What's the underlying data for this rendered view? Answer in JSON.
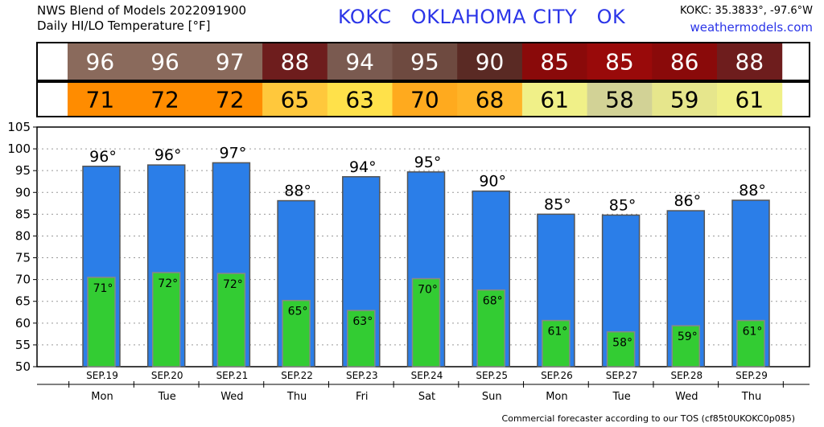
{
  "header": {
    "title_line1": "NWS Blend of Models 2022091900",
    "title_line2": "Daily HI/LO Temperature [°F]",
    "station": "KOKC   OKLAHOMA CITY   OK",
    "coords": "KOKC: 35.3833°, -97.6°W",
    "site": "weathermodels.com"
  },
  "footer": "Commercial forecaster according to our TOS (cf85t0UKOKC0p085)",
  "colors": {
    "hi_bar": "#2b7ee8",
    "lo_bar": "#33cc33",
    "hi_cells": [
      "#8a6a5c",
      "#8a6a5c",
      "#8a6a5c",
      "#6e1d1d",
      "#7a5a50",
      "#6e4a40",
      "#5a2a24",
      "#8a0a0a",
      "#990a0a",
      "#8a0a0a",
      "#6e1d1d"
    ],
    "lo_cells": [
      "#ff8c00",
      "#ff8c00",
      "#ff8c00",
      "#ffc83c",
      "#ffe14a",
      "#ffaa1e",
      "#ffb428",
      "#f0f088",
      "#d2d296",
      "#e6e68c",
      "#f0f088"
    ]
  },
  "chart_data": {
    "type": "bar",
    "title": "Daily HI/LO Temperature [°F]",
    "categories": [
      "SEP.19",
      "SEP.20",
      "SEP.21",
      "SEP.22",
      "SEP.23",
      "SEP.24",
      "SEP.25",
      "SEP.26",
      "SEP.27",
      "SEP.28",
      "SEP.29"
    ],
    "days": [
      "Mon",
      "Tue",
      "Wed",
      "Thu",
      "Fri",
      "Sat",
      "Sun",
      "Mon",
      "Tue",
      "Wed",
      "Thu"
    ],
    "series": [
      {
        "values": [
          96,
          96,
          97,
          88,
          94,
          95,
          90,
          85,
          85,
          86,
          88
        ],
        "precise": [
          96.0,
          96.3,
          96.8,
          88.1,
          93.6,
          94.7,
          90.3,
          85.0,
          84.8,
          85.8,
          88.2
        ]
      },
      {
        "values": [
          71,
          72,
          72,
          65,
          63,
          70,
          68,
          61,
          58,
          59,
          61
        ],
        "precise": [
          70.5,
          71.6,
          71.4,
          65.2,
          62.9,
          70.2,
          67.6,
          60.6,
          58.0,
          59.4,
          60.6
        ]
      }
    ],
    "hi_labels": [
      "96°",
      "96°",
      "97°",
      "88°",
      "94°",
      "95°",
      "90°",
      "85°",
      "85°",
      "86°",
      "88°"
    ],
    "lo_labels": [
      "71°",
      "72°",
      "72°",
      "65°",
      "63°",
      "70°",
      "68°",
      "61°",
      "58°",
      "59°",
      "61°"
    ],
    "ylim": [
      50,
      105
    ],
    "yticks": [
      50,
      55,
      60,
      65,
      70,
      75,
      80,
      85,
      90,
      95,
      100,
      105
    ],
    "grid": true
  }
}
